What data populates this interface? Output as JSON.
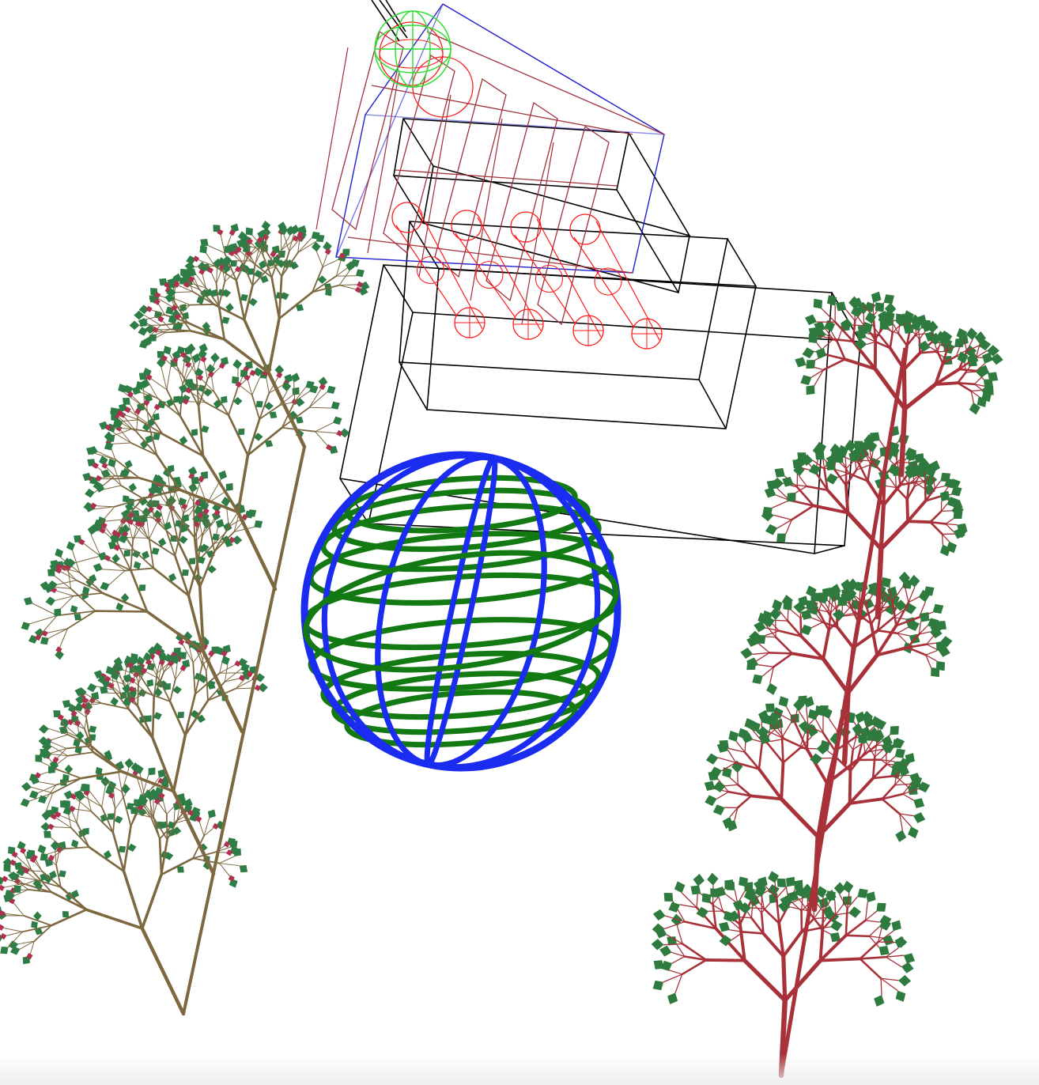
{
  "scene": {
    "background": "#ffffff",
    "colors": {
      "brown_branch": "#7d6840",
      "brown_leaf": "#2e7d46",
      "bud": "#b03050",
      "red_branch": "#a8313a",
      "red_tree_leaf": "#2f7a3e",
      "sphere_blue": "#1a2cf0",
      "sphere_green": "#137a13",
      "box_black": "#000000",
      "wire_red": "#ff1a1a",
      "wire_darkred": "#a0303a",
      "wire_blue": "#2020d0",
      "gizmo_green": "#33dd33"
    },
    "objects": [
      "brown-fractal-tree",
      "red-fractal-tree",
      "wireframe-sphere",
      "black-wireframe-boxes",
      "red-wireframe-structure",
      "green-gizmo"
    ]
  }
}
